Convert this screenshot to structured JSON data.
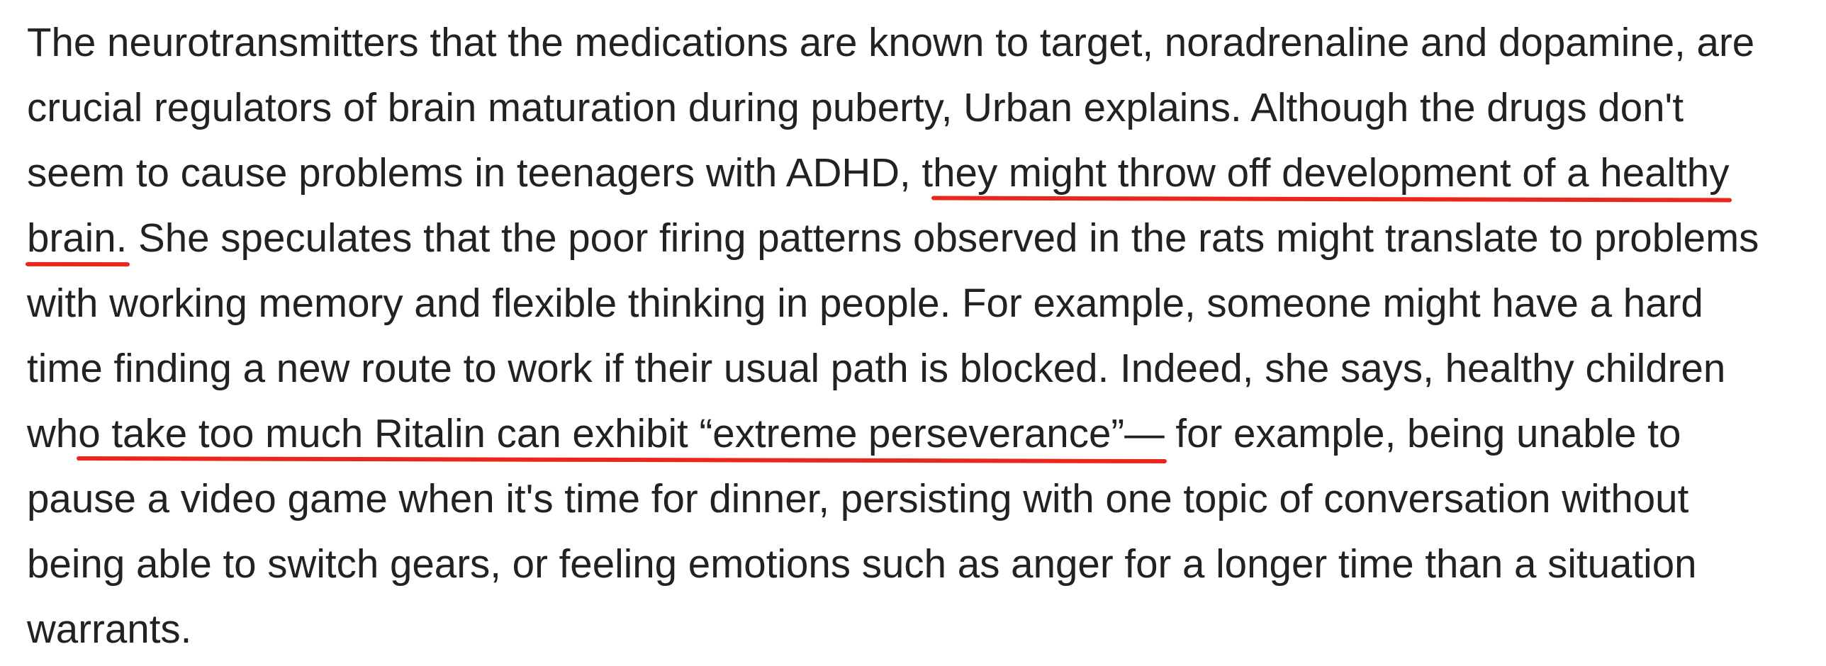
{
  "article": {
    "lines": [
      {
        "segments": [
          {
            "text": "The neurotransmitters that the medications are known to target, noradrenaline and dopamine, are",
            "underline": false
          }
        ]
      },
      {
        "segments": [
          {
            "text": "crucial regulators of brain maturation during puberty, Urban explains. Although the drugs don't",
            "underline": false
          }
        ]
      },
      {
        "segments": [
          {
            "text": "seem to cause problems in teenagers with ADHD, t",
            "underline": false
          },
          {
            "text": "hey might throw off development of a healthy",
            "underline": true
          }
        ]
      },
      {
        "segments": [
          {
            "text": "brain.",
            "underline": true
          },
          {
            "text": " She speculates that the poor firing patterns observed in the rats might translate to problems",
            "underline": false
          }
        ]
      },
      {
        "segments": [
          {
            "text": "with working memory and flexible thinking in people. For example, someone might have a hard",
            "underline": false
          }
        ]
      },
      {
        "segments": [
          {
            "text": "time finding a new route to work if their usual path is blocked. Indeed, she says, healthy children",
            "underline": false
          }
        ]
      },
      {
        "segments": [
          {
            "text": "wh",
            "underline": false
          },
          {
            "text": "o take too much Ritalin can exhibit “extreme perseverance”—",
            "underline": true
          },
          {
            "text": " for example, being unable to",
            "underline": false
          }
        ]
      },
      {
        "segments": [
          {
            "text": "pause a video game when it's time for dinner, persisting with one topic of conversation without",
            "underline": false
          }
        ]
      },
      {
        "segments": [
          {
            "text": "being able to switch gears, or feeling emotions such as anger for a longer time than a situation",
            "underline": false
          }
        ]
      },
      {
        "segments": [
          {
            "text": "warrants.",
            "underline": false
          }
        ]
      }
    ],
    "colors": {
      "text": "#222222",
      "underline": "#e8271f",
      "background": "#ffffff"
    }
  }
}
